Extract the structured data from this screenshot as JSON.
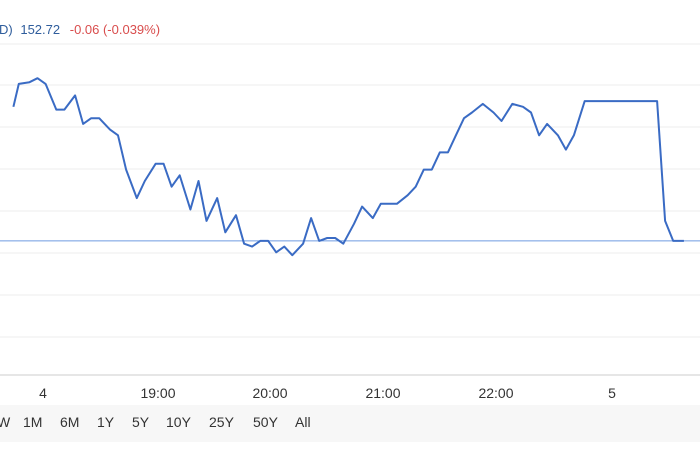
{
  "quote": {
    "label_tail": "D)",
    "price": "152.72",
    "change": "-0.06 (-0.039%)",
    "price_color": "#2f5d9c",
    "change_color": "#d94d4d"
  },
  "range_buttons": [
    "W",
    "1M",
    "6M",
    "1Y",
    "5Y",
    "10Y",
    "25Y",
    "50Y",
    "All"
  ],
  "chart_data": {
    "type": "line",
    "title": "",
    "xlabel": "",
    "ylabel": "",
    "x_tick_labels": [
      "4",
      "19:00",
      "20:00",
      "21:00",
      "22:00",
      "5"
    ],
    "line_color": "#3a6bc4",
    "baseline_color": "#6f9be0",
    "grid": true,
    "legend": "none",
    "series": [
      {
        "points": [
          [
            0.0,
            90.0
          ],
          [
            0.2,
            98.0
          ],
          [
            0.6,
            98.6
          ],
          [
            0.9,
            100.0
          ],
          [
            1.2,
            98.0
          ],
          [
            1.6,
            89.0
          ],
          [
            1.9,
            89.0
          ],
          [
            2.3,
            94.0
          ],
          [
            2.6,
            84.0
          ],
          [
            2.9,
            86.0
          ],
          [
            3.2,
            86.0
          ],
          [
            3.6,
            82.0
          ],
          [
            3.9,
            80.0
          ],
          [
            4.2,
            68.0
          ],
          [
            4.6,
            58.0
          ],
          [
            4.9,
            64.0
          ],
          [
            5.3,
            70.0
          ],
          [
            5.6,
            70.0
          ],
          [
            5.9,
            62.0
          ],
          [
            6.2,
            66.0
          ],
          [
            6.6,
            54.0
          ],
          [
            6.9,
            64.0
          ],
          [
            7.2,
            50.0
          ],
          [
            7.6,
            58.0
          ],
          [
            7.9,
            46.0
          ],
          [
            8.3,
            52.0
          ],
          [
            8.6,
            42.0
          ],
          [
            8.9,
            41.0
          ],
          [
            9.2,
            43.0
          ],
          [
            9.5,
            43.0
          ],
          [
            9.8,
            39.0
          ],
          [
            10.1,
            41.0
          ],
          [
            10.4,
            38.0
          ],
          [
            10.8,
            42.0
          ],
          [
            11.1,
            51.0
          ],
          [
            11.4,
            43.0
          ],
          [
            11.7,
            44.0
          ],
          [
            12.0,
            44.0
          ],
          [
            12.3,
            42.0
          ],
          [
            12.7,
            49.0
          ],
          [
            13.0,
            55.0
          ],
          [
            13.4,
            51.0
          ],
          [
            13.7,
            56.0
          ],
          [
            14.0,
            56.0
          ],
          [
            14.3,
            56.0
          ],
          [
            14.7,
            59.0
          ],
          [
            15.0,
            62.0
          ],
          [
            15.3,
            68.0
          ],
          [
            15.6,
            68.0
          ],
          [
            15.9,
            74.0
          ],
          [
            16.2,
            74.0
          ],
          [
            16.5,
            80.0
          ],
          [
            16.8,
            86.0
          ],
          [
            17.1,
            88.0
          ],
          [
            17.5,
            91.0
          ],
          [
            17.9,
            88.0
          ],
          [
            18.2,
            85.0
          ],
          [
            18.6,
            91.0
          ],
          [
            19.0,
            90.0
          ],
          [
            19.3,
            88.0
          ],
          [
            19.6,
            80.0
          ],
          [
            19.9,
            84.0
          ],
          [
            20.3,
            80.0
          ],
          [
            20.6,
            75.0
          ],
          [
            20.9,
            80.0
          ],
          [
            21.3,
            92.0
          ],
          [
            24.0,
            92.0
          ],
          [
            24.3,
            50.0
          ],
          [
            24.6,
            43.0
          ],
          [
            25.0,
            43.0
          ]
        ]
      }
    ],
    "baseline_value": 43.0,
    "xlim": [
      0.0,
      25.0
    ],
    "ylim": [
      -4.0,
      112.0
    ]
  }
}
